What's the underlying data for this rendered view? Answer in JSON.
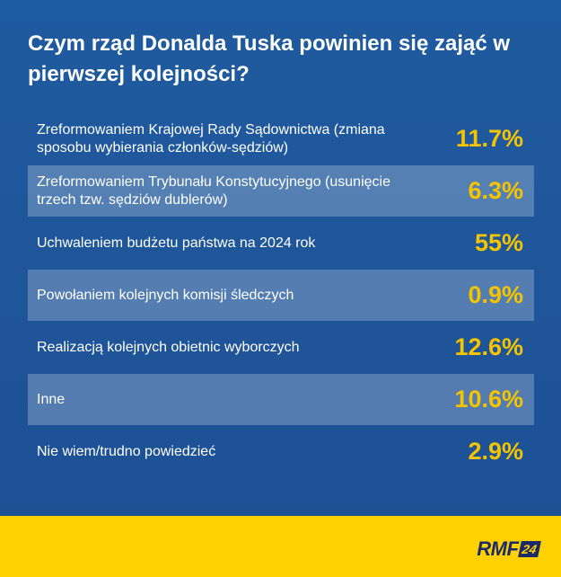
{
  "title": "Czym rząd Donalda Tuska powinien się zająć w pierwszej kolejności?",
  "chart_data": {
    "type": "table",
    "title": "Czym rząd Donalda Tuska powinien się zająć w pierwszej kolejności?",
    "unit": "%",
    "categories": [
      "Zreformowaniem Krajowej Rady Sądownictwa (zmiana sposobu wybierania członków-sędziów)",
      "Zreformowaniem Trybunału Konstytucyjnego (usunięcie trzech tzw. sędziów dublerów)",
      "Uchwaleniem budżetu państwa na 2024 rok",
      "Powołaniem kolejnych komisji śledczych",
      "Realizacją kolejnych obietnic wyborczych",
      "Inne",
      "Nie wiem/trudno powiedzieć"
    ],
    "values": [
      11.7,
      6.3,
      55,
      0.9,
      12.6,
      10.6,
      2.9
    ],
    "labels": [
      "11.7%",
      "6.3%",
      "55%",
      "0.9%",
      "12.6%",
      "10.6%",
      "2.9%"
    ]
  },
  "colors": {
    "background": "#1f5ba0",
    "value_text": "#f5c400",
    "footer": "#ffd100",
    "logo": "#1b2a6b"
  },
  "footer": {
    "logo_main": "RMF",
    "logo_suffix": "24"
  }
}
